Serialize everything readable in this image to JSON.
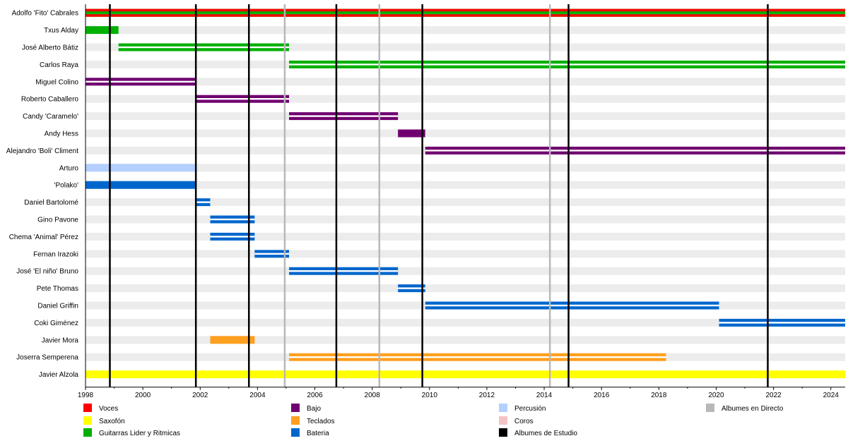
{
  "chart_data": {
    "type": "timeline",
    "title": "",
    "xlabel": "",
    "ylabel": "",
    "xlim": [
      1998,
      2024.5
    ],
    "x_ticks": [
      1998,
      2000,
      2002,
      2004,
      2006,
      2008,
      2010,
      2012,
      2014,
      2016,
      2018,
      2020,
      2022,
      2024
    ],
    "colors": {
      "Voces": "#ff0000",
      "Saxofón": "#ffff00",
      "Guitarras Lider y Ritmicas": "#00b000",
      "Bajo": "#700070",
      "Teclados": "#ff9f1f",
      "Bateria": "#0066cc",
      "Percusión": "#b3d0ff",
      "Coros": "#f4c4c4",
      "Albumes en Directo": "#b8b8b8",
      "Albumes de Estudio": "#000000"
    },
    "members": [
      {
        "name": "Adolfo 'Fito' Cabrales",
        "bars": [
          {
            "start": 1998,
            "end": 2024.5,
            "role": "Voces"
          },
          {
            "start": 1998,
            "end": 2024.5,
            "role": "Guitarras Lider y Ritmicas",
            "secondary": true
          }
        ]
      },
      {
        "name": "Txus Alday",
        "bars": [
          {
            "start": 1998,
            "end": 1999.15,
            "role": "Guitarras Lider y Ritmicas"
          }
        ]
      },
      {
        "name": "José Alberto Bátiz",
        "bars": [
          {
            "start": 1999.15,
            "end": 2005.1,
            "role": "Guitarras Lider y Ritmicas",
            "secondary": true
          }
        ]
      },
      {
        "name": "Carlos Raya",
        "bars": [
          {
            "start": 2005.1,
            "end": 2024.5,
            "role": "Guitarras Lider y Ritmicas",
            "secondary": true
          }
        ]
      },
      {
        "name": "Miguel Colino",
        "bars": [
          {
            "start": 1998,
            "end": 2001.85,
            "role": "Bajo",
            "secondary": true
          }
        ]
      },
      {
        "name": "Roberto Caballero",
        "bars": [
          {
            "start": 2001.85,
            "end": 2005.1,
            "role": "Bajo",
            "secondary": true
          }
        ]
      },
      {
        "name": "Candy 'Caramelo'",
        "bars": [
          {
            "start": 2005.1,
            "end": 2008.9,
            "role": "Bajo",
            "secondary": true
          }
        ]
      },
      {
        "name": "Andy Hess",
        "bars": [
          {
            "start": 2008.9,
            "end": 2009.85,
            "role": "Bajo"
          }
        ]
      },
      {
        "name": "Alejandro 'Boli' Climent",
        "bars": [
          {
            "start": 2009.85,
            "end": 2024.5,
            "role": "Bajo",
            "secondary": true
          }
        ]
      },
      {
        "name": "Arturo",
        "bars": [
          {
            "start": 1998,
            "end": 2001.85,
            "role": "Percusión"
          }
        ]
      },
      {
        "name": "'Polako'",
        "bars": [
          {
            "start": 1998,
            "end": 2001.85,
            "role": "Bateria"
          }
        ]
      },
      {
        "name": "Daniel Bartolomé",
        "bars": [
          {
            "start": 2001.85,
            "end": 2002.35,
            "role": "Bateria",
            "secondary": true
          }
        ]
      },
      {
        "name": "Gino Pavone",
        "bars": [
          {
            "start": 2002.35,
            "end": 2003.9,
            "role": "Bateria",
            "secondary": true
          }
        ]
      },
      {
        "name": "Chema 'Animal' Pérez",
        "bars": [
          {
            "start": 2002.35,
            "end": 2003.9,
            "role": "Bateria",
            "secondary": true
          }
        ]
      },
      {
        "name": "Fernan Irazoki",
        "bars": [
          {
            "start": 2003.9,
            "end": 2005.1,
            "role": "Bateria",
            "secondary": true
          }
        ]
      },
      {
        "name": "José 'El niño' Bruno",
        "bars": [
          {
            "start": 2005.1,
            "end": 2008.9,
            "role": "Bateria",
            "secondary": true
          }
        ]
      },
      {
        "name": "Pete Thomas",
        "bars": [
          {
            "start": 2008.9,
            "end": 2009.85,
            "role": "Bateria",
            "secondary": true
          }
        ]
      },
      {
        "name": "Daniel Griffin",
        "bars": [
          {
            "start": 2009.85,
            "end": 2020.1,
            "role": "Bateria",
            "secondary": true
          }
        ]
      },
      {
        "name": "Coki Giménez",
        "bars": [
          {
            "start": 2020.1,
            "end": 2024.5,
            "role": "Bateria",
            "secondary": true
          }
        ]
      },
      {
        "name": "Javier Mora",
        "bars": [
          {
            "start": 2002.35,
            "end": 2003.9,
            "role": "Teclados"
          }
        ]
      },
      {
        "name": "Joserra Semperena",
        "bars": [
          {
            "start": 2005.1,
            "end": 2018.25,
            "role": "Teclados",
            "secondary": true
          }
        ]
      },
      {
        "name": "Javier Alzola",
        "bars": [
          {
            "start": 1998,
            "end": 2024.5,
            "role": "Saxofón"
          }
        ]
      }
    ],
    "album_lines": [
      {
        "year": 1998.85,
        "type": "Albumes de Estudio"
      },
      {
        "year": 2001.85,
        "type": "Albumes de Estudio"
      },
      {
        "year": 2003.7,
        "type": "Albumes de Estudio"
      },
      {
        "year": 2004.95,
        "type": "Albumes en Directo"
      },
      {
        "year": 2006.75,
        "type": "Albumes de Estudio"
      },
      {
        "year": 2008.25,
        "type": "Albumes en Directo"
      },
      {
        "year": 2009.75,
        "type": "Albumes de Estudio"
      },
      {
        "year": 2014.2,
        "type": "Albumes en Directo"
      },
      {
        "year": 2014.85,
        "type": "Albumes de Estudio"
      },
      {
        "year": 2021.8,
        "type": "Albumes de Estudio"
      }
    ],
    "legend": [
      {
        "label": "Voces",
        "color": "#ff0000"
      },
      {
        "label": "Saxofón",
        "color": "#ffff00"
      },
      {
        "label": "Guitarras Lider y Ritmicas",
        "color": "#00b000"
      },
      {
        "label": "Bajo",
        "color": "#700070"
      },
      {
        "label": "Teclados",
        "color": "#ff9f1f"
      },
      {
        "label": "Bateria",
        "color": "#0066cc"
      },
      {
        "label": "Percusión",
        "color": "#b3d0ff"
      },
      {
        "label": "Coros",
        "color": "#f4c4c4"
      },
      {
        "label": "Albumes de Estudio",
        "color": "#000000"
      },
      {
        "label": "Albumes en Directo",
        "color": "#b8b8b8"
      }
    ]
  }
}
